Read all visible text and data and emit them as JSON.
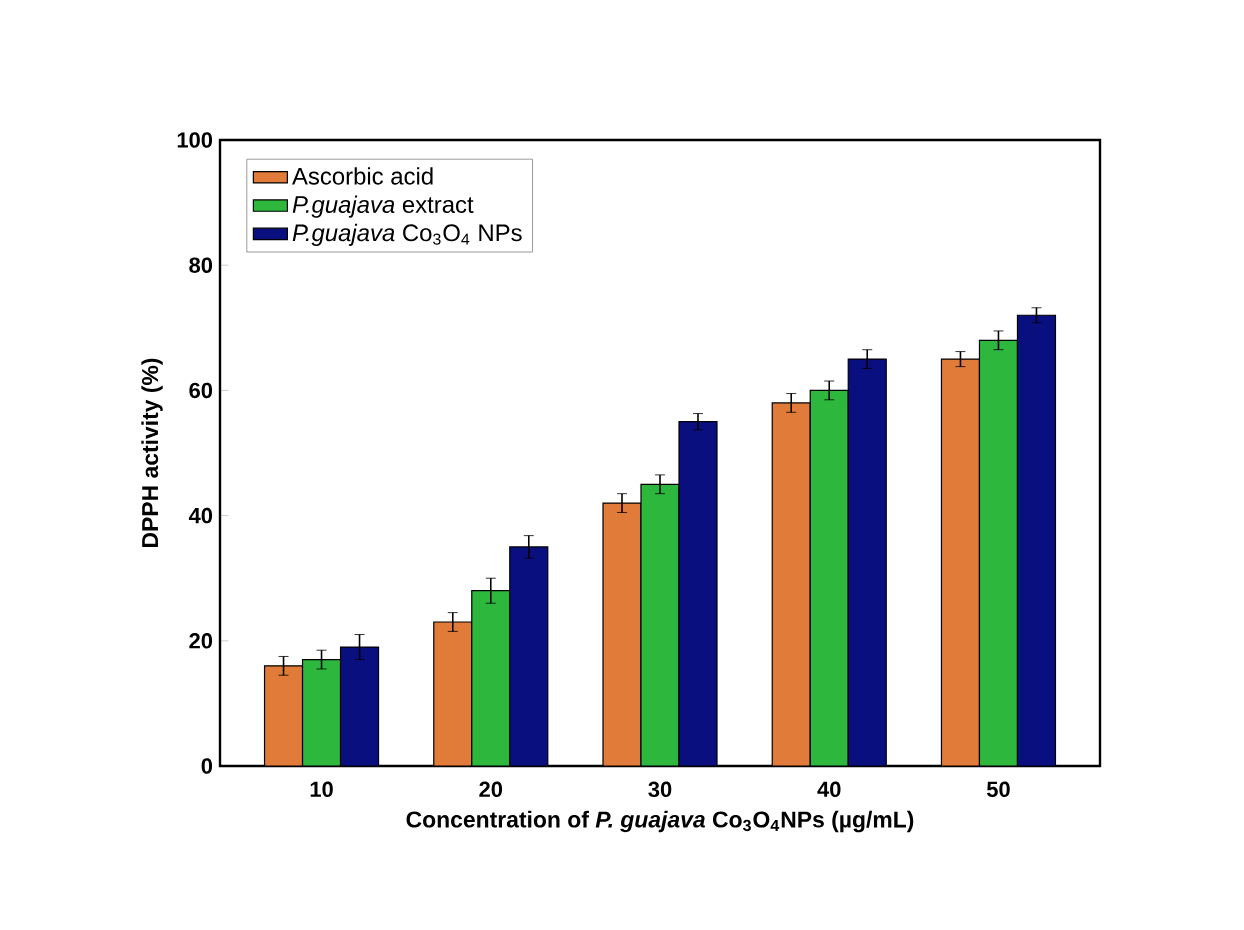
{
  "chart_data": {
    "type": "bar",
    "xlabel": "Concentration of *P. guajava* Co$_{3}$O$_{4}$NPs (µg/mL)",
    "ylabel": "DPPH activity (%)",
    "categories": [
      "10",
      "20",
      "30",
      "40",
      "50"
    ],
    "series": [
      {
        "name": "Ascorbic acid",
        "color": "#e07b39",
        "values": [
          16,
          23,
          42,
          58,
          65
        ],
        "errors": [
          1.5,
          1.5,
          1.5,
          1.5,
          1.2
        ]
      },
      {
        "name": "*P.guajava* extract",
        "color": "#2db83d",
        "values": [
          17,
          28,
          45,
          60,
          68
        ],
        "errors": [
          1.5,
          2,
          1.5,
          1.5,
          1.5
        ]
      },
      {
        "name": "*P.guajava* Co$_{3}$O$_{4}$ NPs",
        "color": "#0a0f80",
        "values": [
          19,
          35,
          55,
          65,
          72
        ],
        "errors": [
          2,
          1.8,
          1.3,
          1.5,
          1.2
        ]
      }
    ],
    "ylim": [
      0,
      100
    ],
    "yticks": [
      0,
      20,
      40,
      60,
      80,
      100
    ],
    "legend": "top left",
    "grid": false
  }
}
